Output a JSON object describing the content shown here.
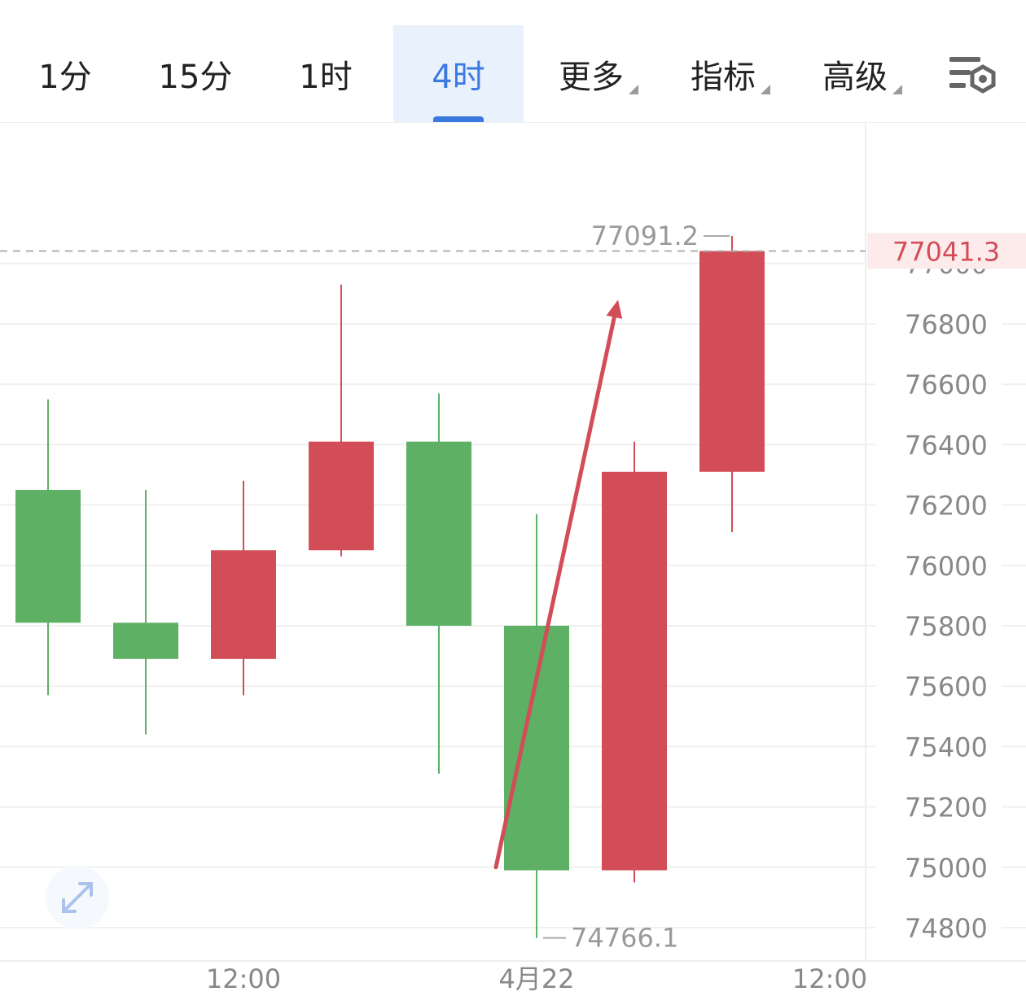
{
  "toolbar": {
    "tabs": [
      {
        "label": "1分"
      },
      {
        "label": "15分"
      },
      {
        "label": "1时"
      },
      {
        "label": "4时"
      },
      {
        "label": "更多"
      },
      {
        "label": "指标"
      },
      {
        "label": "高级"
      }
    ],
    "active_tab": "4时",
    "accent_color": "#3a7ae0"
  },
  "chart_data": {
    "type": "candlestick",
    "colors": {
      "up": "#d24d57",
      "down": "#5eb065"
    },
    "ylim": [
      74720,
      77250
    ],
    "y_ticks": [
      "76800",
      "76600",
      "76400",
      "76200",
      "76000",
      "75800",
      "75600",
      "75400",
      "75200",
      "75000",
      "74800"
    ],
    "x_ticks": [
      "12:00",
      "4月22",
      "12:00"
    ],
    "last_price": "77041.3",
    "partial_tick": "77000",
    "high_label": "77091.2",
    "low_label": "74766.1",
    "candles": [
      {
        "open": 76250,
        "high": 76550,
        "low": 75570,
        "close": 75810,
        "direction": "down"
      },
      {
        "open": 75810,
        "high": 76250,
        "low": 75440,
        "close": 75690,
        "direction": "down"
      },
      {
        "open": 75690,
        "high": 76280,
        "low": 75570,
        "close": 76050,
        "direction": "up"
      },
      {
        "open": 76050,
        "high": 76930,
        "low": 76030,
        "close": 76410,
        "direction": "up"
      },
      {
        "open": 76410,
        "high": 76570,
        "low": 75310,
        "close": 75800,
        "direction": "down"
      },
      {
        "open": 75800,
        "high": 76170,
        "low": 74766.1,
        "close": 74990,
        "direction": "down"
      },
      {
        "open": 74990,
        "high": 76410,
        "low": 74950,
        "close": 76310,
        "direction": "up"
      },
      {
        "open": 76310,
        "high": 77091.2,
        "low": 76110,
        "close": 77041.3,
        "direction": "up"
      }
    ],
    "annotation_arrow": {
      "from": {
        "candle": 5,
        "price": 75000
      },
      "to": {
        "candle": 6,
        "price": 76880
      },
      "color": "#d24d57"
    }
  }
}
